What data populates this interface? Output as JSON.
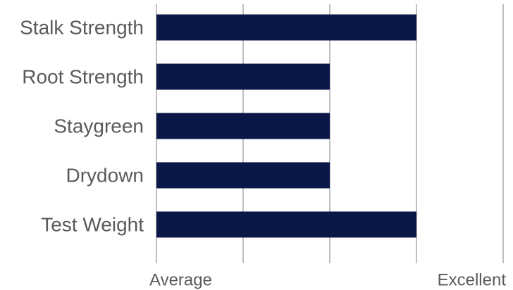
{
  "chart_data": {
    "type": "bar",
    "orientation": "horizontal",
    "categories": [
      "Stalk Strength",
      "Root Strength",
      "Staygreen",
      "Drydown",
      "Test Weight"
    ],
    "values": [
      3,
      2,
      2,
      2,
      3
    ],
    "xlim": [
      0,
      4
    ],
    "x_ticks": [
      0,
      1,
      2,
      3,
      4
    ],
    "x_tick_labels": [
      "Average",
      "",
      "",
      "",
      "Excellent"
    ],
    "title": "",
    "xlabel": "",
    "ylabel": "",
    "grid": "vertical",
    "legend": "none",
    "bar_color": "#0a1747"
  }
}
